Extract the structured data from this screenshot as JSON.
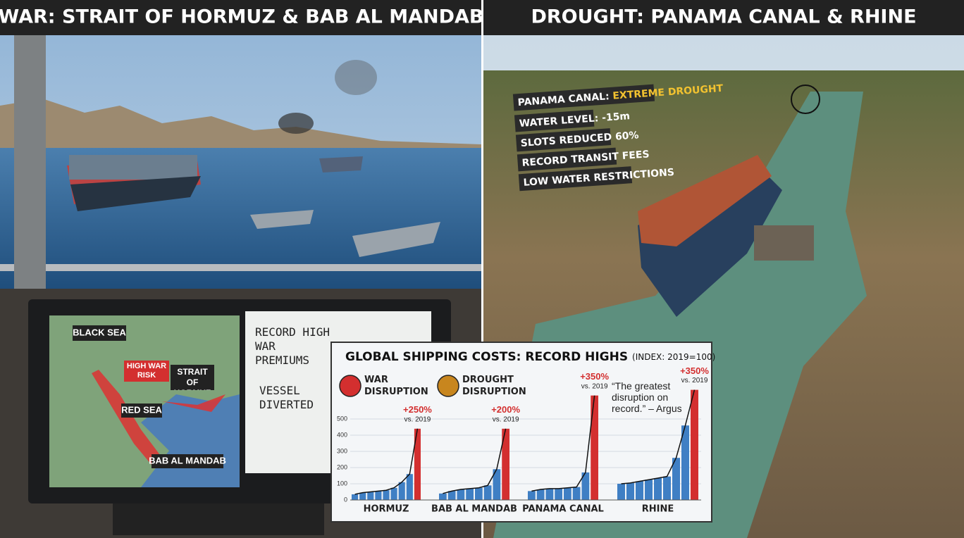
{
  "left_panel": {
    "title": "WAR: STRAIT OF HORMUZ & BAB AL MANDAB",
    "map_labels": [
      "BLACK SEA",
      "HIGH WAR RISK",
      "STRAIT OF HORMUZ",
      "RED SEA",
      "BAB AL MANDAB"
    ],
    "whiteboard": [
      "RECORD HIGH WAR PREMIUMS",
      "VESSEL DIVERTED"
    ]
  },
  "right_panel": {
    "title": "DROUGHT: PANAMA CANAL & RHINE",
    "sign": {
      "heading": "PANAMA CANAL:",
      "highlight": "EXTREME DROUGHT",
      "lines": [
        "WATER LEVEL: -15m",
        "SLOTS REDUCED 60%",
        "RECORD TRANSIT FEES",
        "LOW WATER RESTRICTIONS"
      ]
    }
  },
  "chart_data": {
    "type": "bar",
    "title": "GLOBAL SHIPPING COSTS: RECORD HIGHS",
    "subtitle": "(INDEX: 2019=100)",
    "legend": [
      {
        "name": "WAR DISRUPTION",
        "color": "#d32f2f"
      },
      {
        "name": "DROUGHT DISRUPTION",
        "color": "#c8861e"
      }
    ],
    "quote": "“The greatest disruption on record.” – Argus",
    "ylim": [
      0,
      500
    ],
    "yticks": [
      0,
      100,
      200,
      300,
      400,
      500
    ],
    "grid": true,
    "bar_color": "#3f7fc4",
    "record_color": "#d32f2f",
    "panels": [
      {
        "name": "HORMUZ",
        "values": [
          35,
          45,
          50,
          55,
          60,
          75,
          110,
          160
        ],
        "record": 440,
        "change": "+250%",
        "note": "vs. 2019"
      },
      {
        "name": "BAB AL MANDAB",
        "values": [
          40,
          55,
          65,
          70,
          75,
          90,
          190
        ],
        "record": 440,
        "change": "+200%",
        "note": "vs. 2019"
      },
      {
        "name": "PANAMA CANAL",
        "values": [
          55,
          65,
          70,
          70,
          75,
          80,
          170
        ],
        "record": 645,
        "change": "+350%",
        "note": "vs. 2019"
      },
      {
        "name": "RHINE",
        "values": [
          100,
          105,
          115,
          125,
          135,
          145,
          260,
          460
        ],
        "record": 680,
        "change": "+350%",
        "note": "vs. 2019"
      }
    ]
  }
}
